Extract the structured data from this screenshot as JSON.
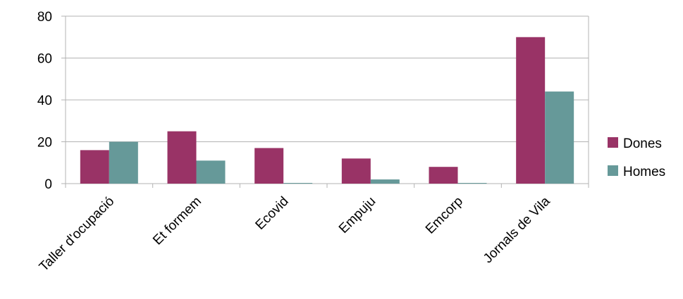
{
  "chart_data": {
    "type": "bar",
    "categories": [
      "Taller d'ocupació",
      "Et formem",
      "Ecovid",
      "Empuju",
      "Emcorp",
      "Jornals de Vila"
    ],
    "series": [
      {
        "name": "Dones",
        "values": [
          16,
          25,
          17,
          12,
          8,
          70
        ],
        "color": "#993366"
      },
      {
        "name": "Homes",
        "values": [
          20,
          11,
          0,
          2,
          0,
          44
        ],
        "color": "#669999"
      }
    ],
    "ylim": [
      0,
      80
    ],
    "yticks": [
      0,
      20,
      40,
      60,
      80
    ],
    "grid": true,
    "legend": "right",
    "title": "",
    "xlabel": "",
    "ylabel": ""
  }
}
